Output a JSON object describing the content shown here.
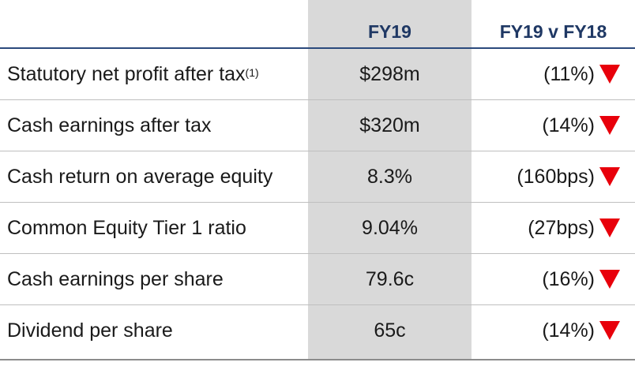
{
  "header": {
    "col_value": "FY19",
    "col_change": "FY19 v FY18"
  },
  "rows": [
    {
      "label": "Statutory net profit after tax",
      "superscript": "(1)",
      "value": "$298m",
      "change": "(11%)",
      "direction": "down"
    },
    {
      "label": "Cash earnings after tax",
      "superscript": "",
      "value": "$320m",
      "change": "(14%)",
      "direction": "down"
    },
    {
      "label": "Cash return on average equity",
      "superscript": "",
      "value": "8.3%",
      "change": "(160bps)",
      "direction": "down"
    },
    {
      "label": "Common Equity Tier 1 ratio",
      "superscript": "",
      "value": "9.04%",
      "change": "(27bps)",
      "direction": "down"
    },
    {
      "label": "Cash earnings per share",
      "superscript": "",
      "value": "79.6c",
      "change": "(16%)",
      "direction": "down"
    },
    {
      "label": "Dividend per share",
      "superscript": "",
      "value": "65c",
      "change": "(14%)",
      "direction": "down"
    }
  ],
  "colors": {
    "header_text": "#1f3864",
    "highlight_column": "#d9d9d9",
    "down_arrow": "#e8000b"
  },
  "icons": {
    "down": "down-triangle-icon"
  }
}
